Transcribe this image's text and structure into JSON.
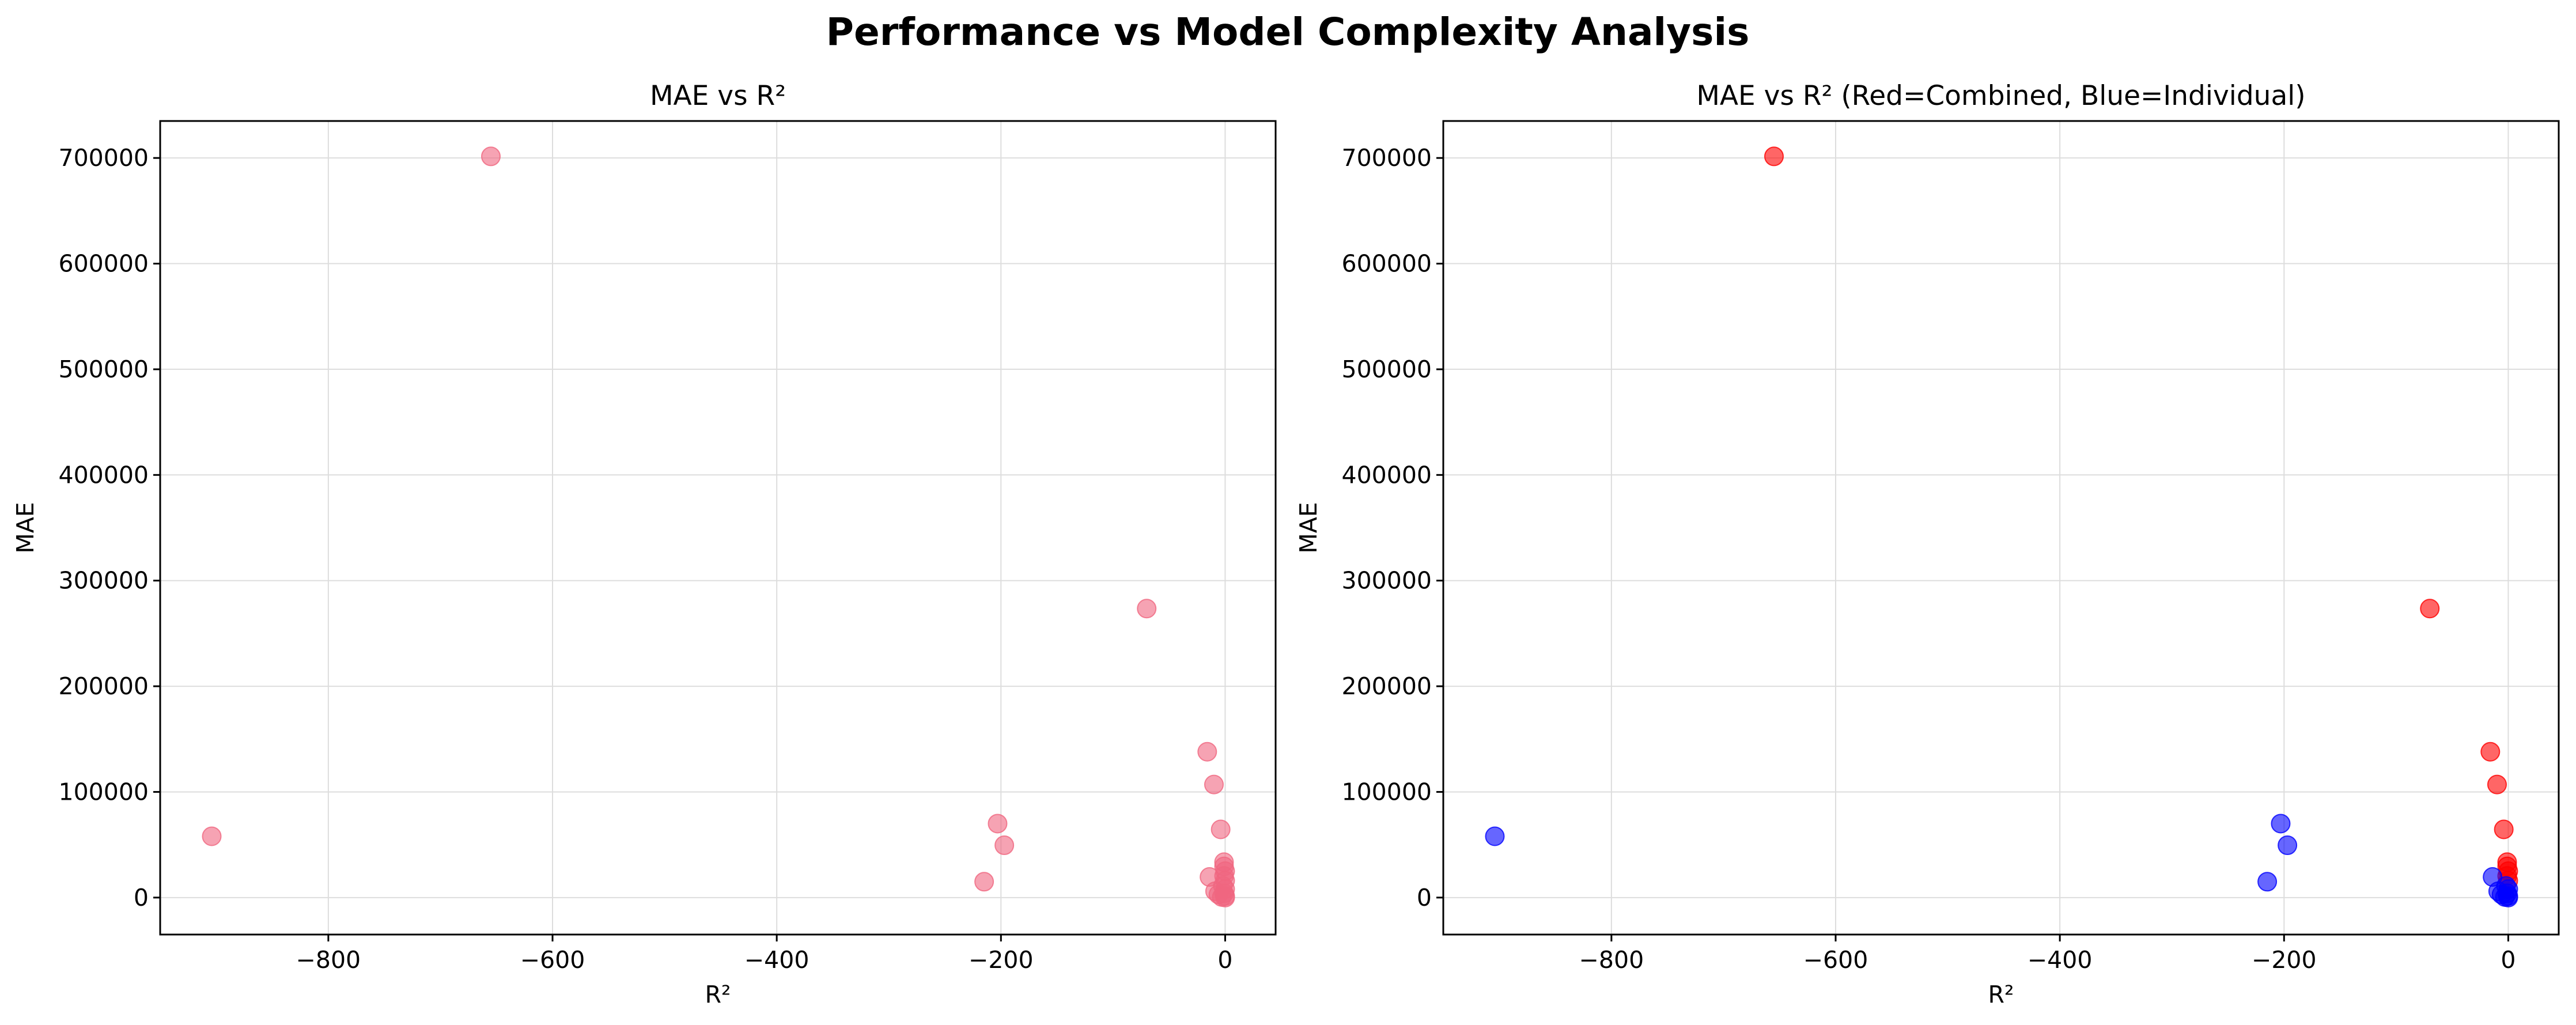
{
  "figure": {
    "title": "Performance vs Model Complexity Analysis"
  },
  "colors": {
    "pink_points": "#f06680",
    "red_points": "#ff0000",
    "blue_points": "#0000ff",
    "grid": "#dddddd",
    "text": "#000000"
  },
  "chart_data": [
    {
      "type": "scatter",
      "title": "MAE vs R²",
      "xlabel": "R²",
      "ylabel": "MAE",
      "xlim": [
        -950,
        45
      ],
      "ylim": [
        -35000,
        735000
      ],
      "xticks": [
        -800,
        -600,
        -400,
        -200,
        0
      ],
      "xtick_labels": [
        "−800",
        "−600",
        "−400",
        "−200",
        "0"
      ],
      "yticks": [
        0,
        100000,
        200000,
        300000,
        400000,
        500000,
        600000,
        700000
      ],
      "ytick_labels": [
        "0",
        "100000",
        "200000",
        "300000",
        "400000",
        "500000",
        "600000",
        "700000"
      ],
      "grid": true,
      "series": [
        {
          "color": "#f06680",
          "points": [
            {
              "x": -655,
              "y": 701500
            },
            {
              "x": -904,
              "y": 58000
            },
            {
              "x": -70,
              "y": 273500
            },
            {
              "x": -203,
              "y": 70000
            },
            {
              "x": -197,
              "y": 49500
            },
            {
              "x": -215,
              "y": 15000
            },
            {
              "x": -16,
              "y": 138000
            },
            {
              "x": -10,
              "y": 107000
            },
            {
              "x": -4,
              "y": 64500
            },
            {
              "x": -14,
              "y": 19500
            },
            {
              "x": -9,
              "y": 6000
            },
            {
              "x": -6,
              "y": 3000
            },
            {
              "x": -1,
              "y": 33500
            },
            {
              "x": -1,
              "y": 29500
            },
            {
              "x": 0,
              "y": 25000
            },
            {
              "x": -1,
              "y": 20500
            },
            {
              "x": 0,
              "y": 16000
            },
            {
              "x": -2,
              "y": 11000
            },
            {
              "x": 0,
              "y": 8000
            },
            {
              "x": -1,
              "y": 4000
            },
            {
              "x": 0,
              "y": 1500
            },
            {
              "x": -3,
              "y": 500
            },
            {
              "x": 0,
              "y": 0
            }
          ]
        }
      ]
    },
    {
      "type": "scatter",
      "title": "MAE vs R² (Red=Combined, Blue=Individual)",
      "xlabel": "R²",
      "ylabel": "MAE",
      "xlim": [
        -950,
        45
      ],
      "ylim": [
        -35000,
        735000
      ],
      "xticks": [
        -800,
        -600,
        -400,
        -200,
        0
      ],
      "xtick_labels": [
        "−800",
        "−600",
        "−400",
        "−200",
        "0"
      ],
      "yticks": [
        0,
        100000,
        200000,
        300000,
        400000,
        500000,
        600000,
        700000
      ],
      "ytick_labels": [
        "0",
        "100000",
        "200000",
        "300000",
        "400000",
        "500000",
        "600000",
        "700000"
      ],
      "grid": true,
      "series": [
        {
          "color": "#ff0000",
          "points": [
            {
              "x": -655,
              "y": 701500
            },
            {
              "x": -70,
              "y": 273500
            },
            {
              "x": -16,
              "y": 138000
            },
            {
              "x": -10,
              "y": 107000
            },
            {
              "x": -4,
              "y": 64500
            },
            {
              "x": -1,
              "y": 33500
            },
            {
              "x": -1,
              "y": 29500
            },
            {
              "x": 0,
              "y": 25000
            },
            {
              "x": -1,
              "y": 20500
            },
            {
              "x": 0,
              "y": 16000
            }
          ]
        },
        {
          "color": "#0000ff",
          "points": [
            {
              "x": -904,
              "y": 58000
            },
            {
              "x": -203,
              "y": 70000
            },
            {
              "x": -197,
              "y": 49500
            },
            {
              "x": -215,
              "y": 15000
            },
            {
              "x": -14,
              "y": 19500
            },
            {
              "x": -9,
              "y": 6000
            },
            {
              "x": -6,
              "y": 3000
            },
            {
              "x": -2,
              "y": 11000
            },
            {
              "x": 0,
              "y": 8000
            },
            {
              "x": -1,
              "y": 4000
            },
            {
              "x": 0,
              "y": 1500
            },
            {
              "x": -3,
              "y": 500
            },
            {
              "x": 0,
              "y": 0
            }
          ]
        }
      ]
    }
  ]
}
